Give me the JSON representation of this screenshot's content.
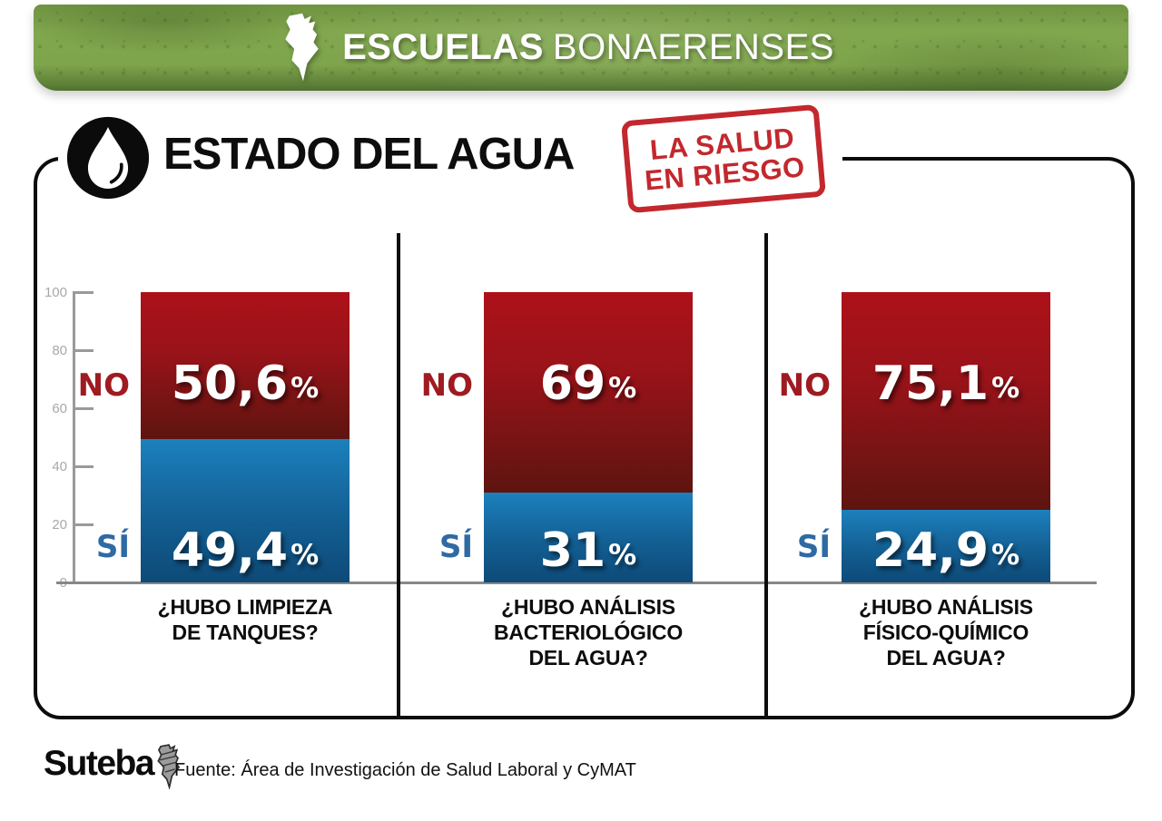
{
  "header": {
    "brand_bold": "ESCUELAS",
    "brand_light": "BONAERENSES"
  },
  "title": "ESTADO DEL AGUA",
  "stamp": {
    "line1": "LA SALUD",
    "line2": "EN RIESGO"
  },
  "symbols": {
    "percent": "%"
  },
  "chart_data": {
    "type": "bar",
    "stacked": true,
    "ylim": [
      0,
      100
    ],
    "grid": false,
    "ytick_labels": [
      "100",
      "80",
      "60",
      "40",
      "20",
      "0"
    ],
    "series_names": [
      "NO",
      "SÍ"
    ],
    "charts": [
      {
        "question_lines": [
          "¿HUBO LIMPIEZA",
          "DE TANQUES?"
        ],
        "no_label": "NO",
        "si_label": "SÍ",
        "no_value": 50.6,
        "si_value": 49.4,
        "no_display": "50,6",
        "si_display": "49,4"
      },
      {
        "question_lines": [
          "¿HUBO ANÁLISIS",
          "BACTERIOLÓGICO",
          "DEL AGUA?"
        ],
        "no_label": "NO",
        "si_label": "SÍ",
        "no_value": 69,
        "si_value": 31,
        "no_display": "69",
        "si_display": "31"
      },
      {
        "question_lines": [
          "¿HUBO ANÁLISIS",
          "FÍSICO-QUÍMICO",
          "DEL AGUA?"
        ],
        "no_label": "NO",
        "si_label": "SÍ",
        "no_value": 75.1,
        "si_value": 24.9,
        "no_display": "75,1",
        "si_display": "24,9"
      }
    ]
  },
  "footer": {
    "logo_text": "Suteba",
    "source": "Fuente: Área de Investigación de Salud Laboral y CyMAT"
  },
  "colors": {
    "banner_green": "#7ea44c",
    "no_segment_top": "#ad1119",
    "no_segment_bottom": "#5e1410",
    "si_segment_top": "#1c80bc",
    "si_segment_bottom": "#0d4a78",
    "no_label_red": "#9e1b21",
    "si_label_blue": "#2e6aa3",
    "stamp_red": "#c2282d",
    "axis_gray": "#9a9a9a"
  }
}
